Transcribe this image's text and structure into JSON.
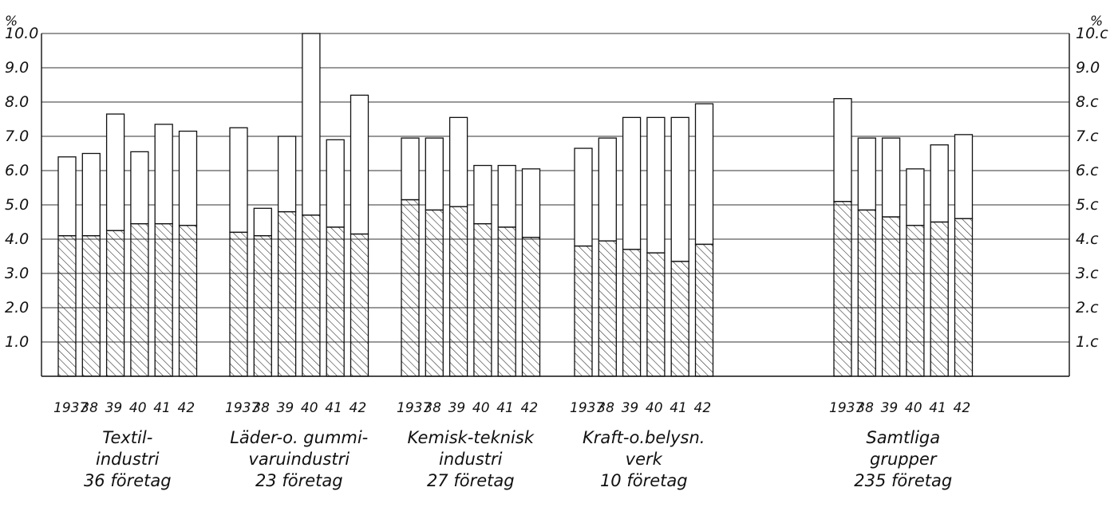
{
  "chart_data": {
    "type": "bar",
    "stacked": true,
    "y_unit_label": "%",
    "ylim": [
      0,
      10
    ],
    "y_ticks": [
      "1.0",
      "2.0",
      "3.0",
      "4.0",
      "5.0",
      "6.0",
      "7.0",
      "8.0",
      "9.0",
      "10.0"
    ],
    "right_y_ticks": [
      "1.c",
      "2.c",
      "3.c",
      "4.c",
      "5.c",
      "6.c",
      "7.c",
      "8.c",
      "9.0",
      "10.c"
    ],
    "grid": true,
    "groups": [
      {
        "label_lines": [
          "Textil-",
          "industri",
          "36 företag"
        ],
        "years": [
          "1937",
          "38",
          "39",
          "40",
          "41",
          "42"
        ],
        "lower": [
          4.1,
          4.1,
          4.25,
          4.45,
          4.45,
          4.4
        ],
        "total": [
          6.4,
          6.5,
          7.65,
          6.55,
          7.35,
          7.15
        ]
      },
      {
        "label_lines": [
          "Läder-o. gummi-",
          "varuindustri",
          "23 företag"
        ],
        "years": [
          "1937",
          "38",
          "39",
          "40",
          "41",
          "42"
        ],
        "lower": [
          4.2,
          4.1,
          4.8,
          4.7,
          4.35,
          4.15
        ],
        "total": [
          7.25,
          4.9,
          7.0,
          10.0,
          6.9,
          8.2
        ]
      },
      {
        "label_lines": [
          "Kemisk-teknisk",
          "industri",
          "27 företag"
        ],
        "years": [
          "1937",
          "38",
          "39",
          "40",
          "41",
          "42"
        ],
        "lower": [
          5.15,
          4.85,
          4.95,
          4.45,
          4.35,
          4.05
        ],
        "total": [
          6.95,
          6.95,
          7.55,
          6.15,
          6.15,
          6.05
        ]
      },
      {
        "label_lines": [
          "Kraft-o.belysn.",
          "verk",
          "10 företag"
        ],
        "years": [
          "1937",
          "38",
          "39",
          "40",
          "41",
          "42"
        ],
        "lower": [
          3.8,
          3.95,
          3.7,
          3.6,
          3.35,
          3.85
        ],
        "total": [
          6.65,
          6.95,
          7.55,
          7.55,
          7.55,
          7.95
        ]
      },
      {
        "label_lines": [
          "Samtliga",
          "grupper",
          "235 företag"
        ],
        "years": [
          "1937",
          "38",
          "39",
          "40",
          "41",
          "42"
        ],
        "lower": [
          5.1,
          4.85,
          4.65,
          4.4,
          4.5,
          4.6
        ],
        "total": [
          8.1,
          6.95,
          6.95,
          6.05,
          6.75,
          7.05
        ]
      }
    ],
    "colors": {
      "line": "#111111",
      "hatch": "#222222",
      "background": "#ffffff"
    }
  }
}
